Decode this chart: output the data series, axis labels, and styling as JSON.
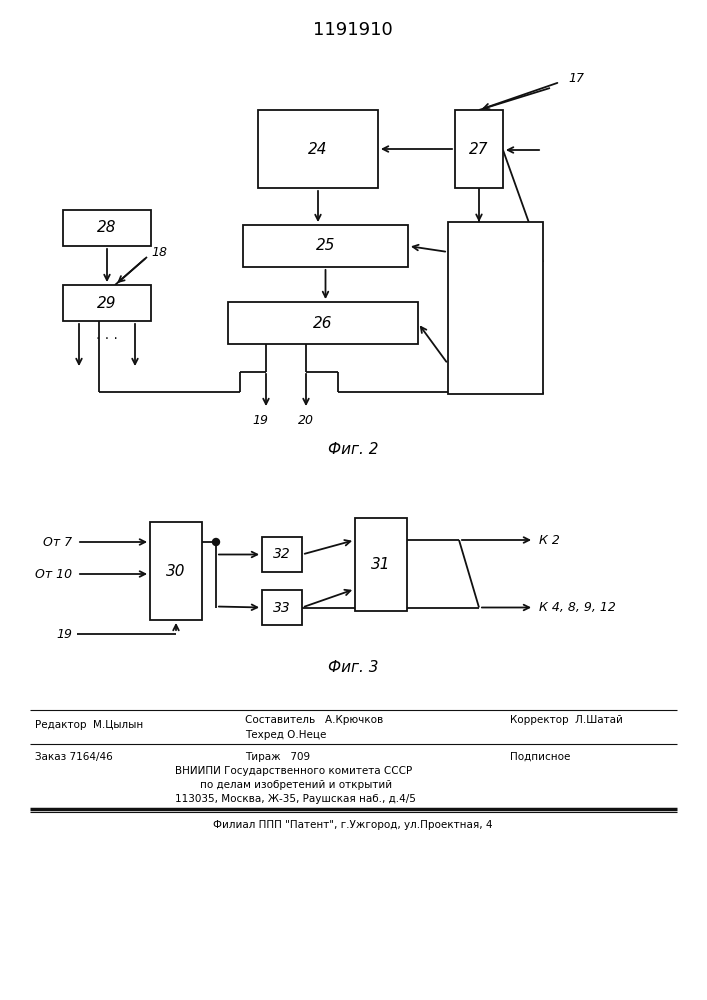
{
  "title": "1191910",
  "fig2_label": "Фиг. 2",
  "fig3_label": "Фиг. 3",
  "background": "#ffffff",
  "line_color": "#111111",
  "box_edge": "#111111",
  "lw": 1.3,
  "editor": "Редактор  М.Цылын",
  "sostavitel": "Составитель   А.Крючков",
  "tehred": "Техред О.Неце",
  "korrektor": "Корректор  Л.Шатай",
  "zakaz": "Заказ 7164/46",
  "tirazh": "Тираж   709",
  "podpisnoe": "Подписное",
  "vniipи1": "ВНИИПИ Государственного комитета СССР",
  "vniipи2": "по делам изобретений и открытий",
  "vniipи3": "113035, Москва, Ж-35, Раушская наб., д.4/5",
  "filial": "Филиал ППП \"Патент\", г.Ужгород, ул.Проектная, 4",
  "ot7": "От 7",
  "ot10": "От 10",
  "k2": "К 2",
  "k4": "К 4, 8, 9, 12"
}
